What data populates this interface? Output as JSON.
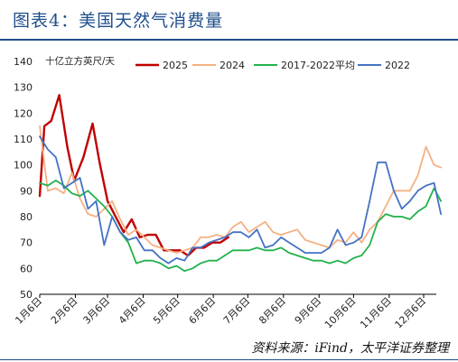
{
  "header": {
    "title": "图表4：美国天然气消费量",
    "source": "资料来源：iFind，太平洋证券整理"
  },
  "colors": {
    "title": "#1f4e8c",
    "s2025": "#c00000",
    "s2024": "#f4b183",
    "s2017_2022": "#22b14c",
    "s2022": "#4472c4"
  },
  "chart_data": {
    "type": "line",
    "unit_label": "十亿立方英尺/天",
    "x_tick_labels": [
      "1月6日",
      "2月6日",
      "3月6日",
      "4月6日",
      "5月6日",
      "6月6日",
      "7月6日",
      "8月6日",
      "9月6日",
      "10月6日",
      "11月6日",
      "12月6日"
    ],
    "x_tick_days": [
      6,
      37,
      65,
      96,
      126,
      157,
      187,
      218,
      249,
      279,
      310,
      340
    ],
    "xlim": [
      6,
      351
    ],
    "ylim": [
      50,
      140
    ],
    "y_ticks": [
      50,
      60,
      70,
      80,
      90,
      100,
      110,
      120,
      130,
      140
    ],
    "legend": {
      "placement": "top"
    },
    "grid": false,
    "series": [
      {
        "name": "2025",
        "color": "#c00000",
        "points": [
          [
            6,
            88
          ],
          [
            10,
            115
          ],
          [
            16,
            117
          ],
          [
            23,
            127
          ],
          [
            30,
            107
          ],
          [
            36,
            94
          ],
          [
            44,
            103
          ],
          [
            52,
            116
          ],
          [
            58,
            101
          ],
          [
            65,
            86
          ],
          [
            72,
            80
          ],
          [
            79,
            74
          ],
          [
            86,
            79
          ],
          [
            93,
            72
          ],
          [
            100,
            73
          ],
          [
            107,
            73
          ],
          [
            114,
            67
          ],
          [
            121,
            67
          ],
          [
            128,
            67
          ],
          [
            135,
            65
          ],
          [
            142,
            68
          ],
          [
            149,
            68
          ],
          [
            156,
            70
          ],
          [
            163,
            70
          ],
          [
            170,
            72
          ]
        ]
      },
      {
        "name": "2024",
        "color": "#f4b183",
        "points": [
          [
            6,
            115
          ],
          [
            13,
            90
          ],
          [
            20,
            91
          ],
          [
            27,
            89
          ],
          [
            34,
            97
          ],
          [
            41,
            87
          ],
          [
            48,
            81
          ],
          [
            55,
            80
          ],
          [
            62,
            83
          ],
          [
            69,
            86
          ],
          [
            76,
            79
          ],
          [
            83,
            73
          ],
          [
            90,
            75
          ],
          [
            97,
            72
          ],
          [
            104,
            69
          ],
          [
            111,
            68
          ],
          [
            118,
            67
          ],
          [
            125,
            66
          ],
          [
            132,
            67
          ],
          [
            139,
            68
          ],
          [
            146,
            72
          ],
          [
            153,
            72
          ],
          [
            160,
            73
          ],
          [
            167,
            72
          ],
          [
            174,
            76
          ],
          [
            181,
            78
          ],
          [
            188,
            74
          ],
          [
            195,
            76
          ],
          [
            202,
            78
          ],
          [
            209,
            74
          ],
          [
            216,
            73
          ],
          [
            223,
            74
          ],
          [
            230,
            75
          ],
          [
            237,
            71
          ],
          [
            244,
            70
          ],
          [
            251,
            69
          ],
          [
            258,
            68
          ],
          [
            265,
            71
          ],
          [
            272,
            70
          ],
          [
            279,
            74
          ],
          [
            286,
            70
          ],
          [
            293,
            75
          ],
          [
            300,
            78
          ],
          [
            307,
            84
          ],
          [
            314,
            90
          ],
          [
            321,
            90
          ],
          [
            328,
            90
          ],
          [
            335,
            96
          ],
          [
            342,
            107
          ],
          [
            349,
            100
          ],
          [
            355,
            99
          ]
        ]
      },
      {
        "name": "2017-2022平均",
        "color": "#22b14c",
        "points": [
          [
            6,
            93
          ],
          [
            13,
            92
          ],
          [
            20,
            94
          ],
          [
            27,
            92
          ],
          [
            34,
            89
          ],
          [
            41,
            88
          ],
          [
            48,
            90
          ],
          [
            55,
            87
          ],
          [
            62,
            84
          ],
          [
            69,
            80
          ],
          [
            76,
            74
          ],
          [
            83,
            70
          ],
          [
            90,
            62
          ],
          [
            97,
            63
          ],
          [
            104,
            63
          ],
          [
            111,
            62
          ],
          [
            118,
            60
          ],
          [
            125,
            61
          ],
          [
            132,
            59
          ],
          [
            139,
            60
          ],
          [
            146,
            62
          ],
          [
            153,
            63
          ],
          [
            160,
            63
          ],
          [
            167,
            65
          ],
          [
            174,
            67
          ],
          [
            181,
            67
          ],
          [
            188,
            67
          ],
          [
            195,
            68
          ],
          [
            202,
            67
          ],
          [
            209,
            67
          ],
          [
            216,
            68
          ],
          [
            223,
            66
          ],
          [
            230,
            65
          ],
          [
            237,
            64
          ],
          [
            244,
            63
          ],
          [
            251,
            63
          ],
          [
            258,
            62
          ],
          [
            265,
            63
          ],
          [
            272,
            62
          ],
          [
            279,
            64
          ],
          [
            286,
            65
          ],
          [
            293,
            69
          ],
          [
            300,
            78
          ],
          [
            307,
            81
          ],
          [
            314,
            80
          ],
          [
            321,
            80
          ],
          [
            328,
            79
          ],
          [
            335,
            82
          ],
          [
            342,
            84
          ],
          [
            349,
            91
          ],
          [
            355,
            86
          ]
        ]
      },
      {
        "name": "2022",
        "color": "#4472c4",
        "points": [
          [
            6,
            111
          ],
          [
            13,
            106
          ],
          [
            20,
            103
          ],
          [
            27,
            91
          ],
          [
            34,
            93
          ],
          [
            41,
            95
          ],
          [
            48,
            83
          ],
          [
            55,
            86
          ],
          [
            62,
            69
          ],
          [
            69,
            80
          ],
          [
            76,
            74
          ],
          [
            83,
            71
          ],
          [
            90,
            72
          ],
          [
            97,
            67
          ],
          [
            104,
            67
          ],
          [
            111,
            64
          ],
          [
            118,
            62
          ],
          [
            125,
            64
          ],
          [
            132,
            63
          ],
          [
            139,
            68
          ],
          [
            146,
            68
          ],
          [
            153,
            70
          ],
          [
            160,
            71
          ],
          [
            167,
            72
          ],
          [
            174,
            74
          ],
          [
            181,
            74
          ],
          [
            188,
            72
          ],
          [
            195,
            75
          ],
          [
            202,
            68
          ],
          [
            209,
            69
          ],
          [
            216,
            72
          ],
          [
            223,
            70
          ],
          [
            230,
            68
          ],
          [
            237,
            66
          ],
          [
            244,
            66
          ],
          [
            251,
            66
          ],
          [
            258,
            68
          ],
          [
            265,
            75
          ],
          [
            272,
            69
          ],
          [
            279,
            70
          ],
          [
            286,
            72
          ],
          [
            293,
            86
          ],
          [
            300,
            101
          ],
          [
            307,
            101
          ],
          [
            314,
            90
          ],
          [
            321,
            83
          ],
          [
            328,
            86
          ],
          [
            335,
            90
          ],
          [
            342,
            92
          ],
          [
            349,
            93
          ],
          [
            355,
            81
          ]
        ]
      }
    ]
  }
}
